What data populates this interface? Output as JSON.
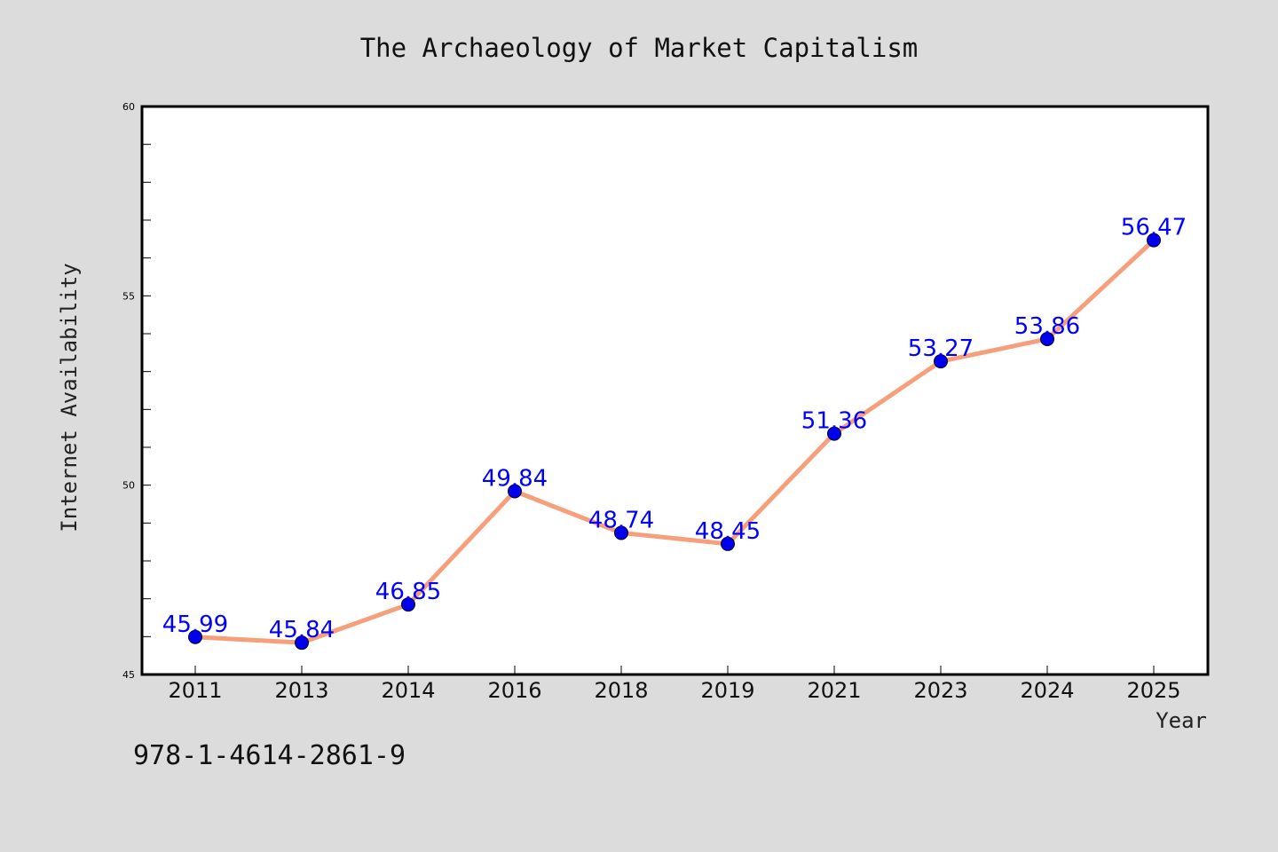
{
  "chart_data": {
    "type": "line",
    "title": "The Archaeology of Market Capitalism",
    "xlabel": "Year",
    "ylabel": "Internet Availability",
    "categories": [
      "2011",
      "2013",
      "2014",
      "2016",
      "2018",
      "2019",
      "2021",
      "2023",
      "2024",
      "2025"
    ],
    "values": [
      45.99,
      45.84,
      46.85,
      49.84,
      48.74,
      48.45,
      51.36,
      53.27,
      53.86,
      56.47
    ],
    "data_labels": [
      "45.99",
      "45.84",
      "46.85",
      "49.84",
      "48.74",
      "48.45",
      "51.36",
      "53.27",
      "53.86",
      "56.47"
    ],
    "ylim": [
      45,
      60
    ],
    "y_ticks": [
      45,
      50,
      55,
      60
    ],
    "y_tick_labels": [
      "45",
      "50",
      "55",
      "60"
    ],
    "y_minor_step": 1,
    "grid": false,
    "legend": "none",
    "line_color": "#f5a07a",
    "marker_color": "#0000ee",
    "label_color": "#0000ff"
  },
  "footer": {
    "code": "978-1-4614-2861-9"
  }
}
